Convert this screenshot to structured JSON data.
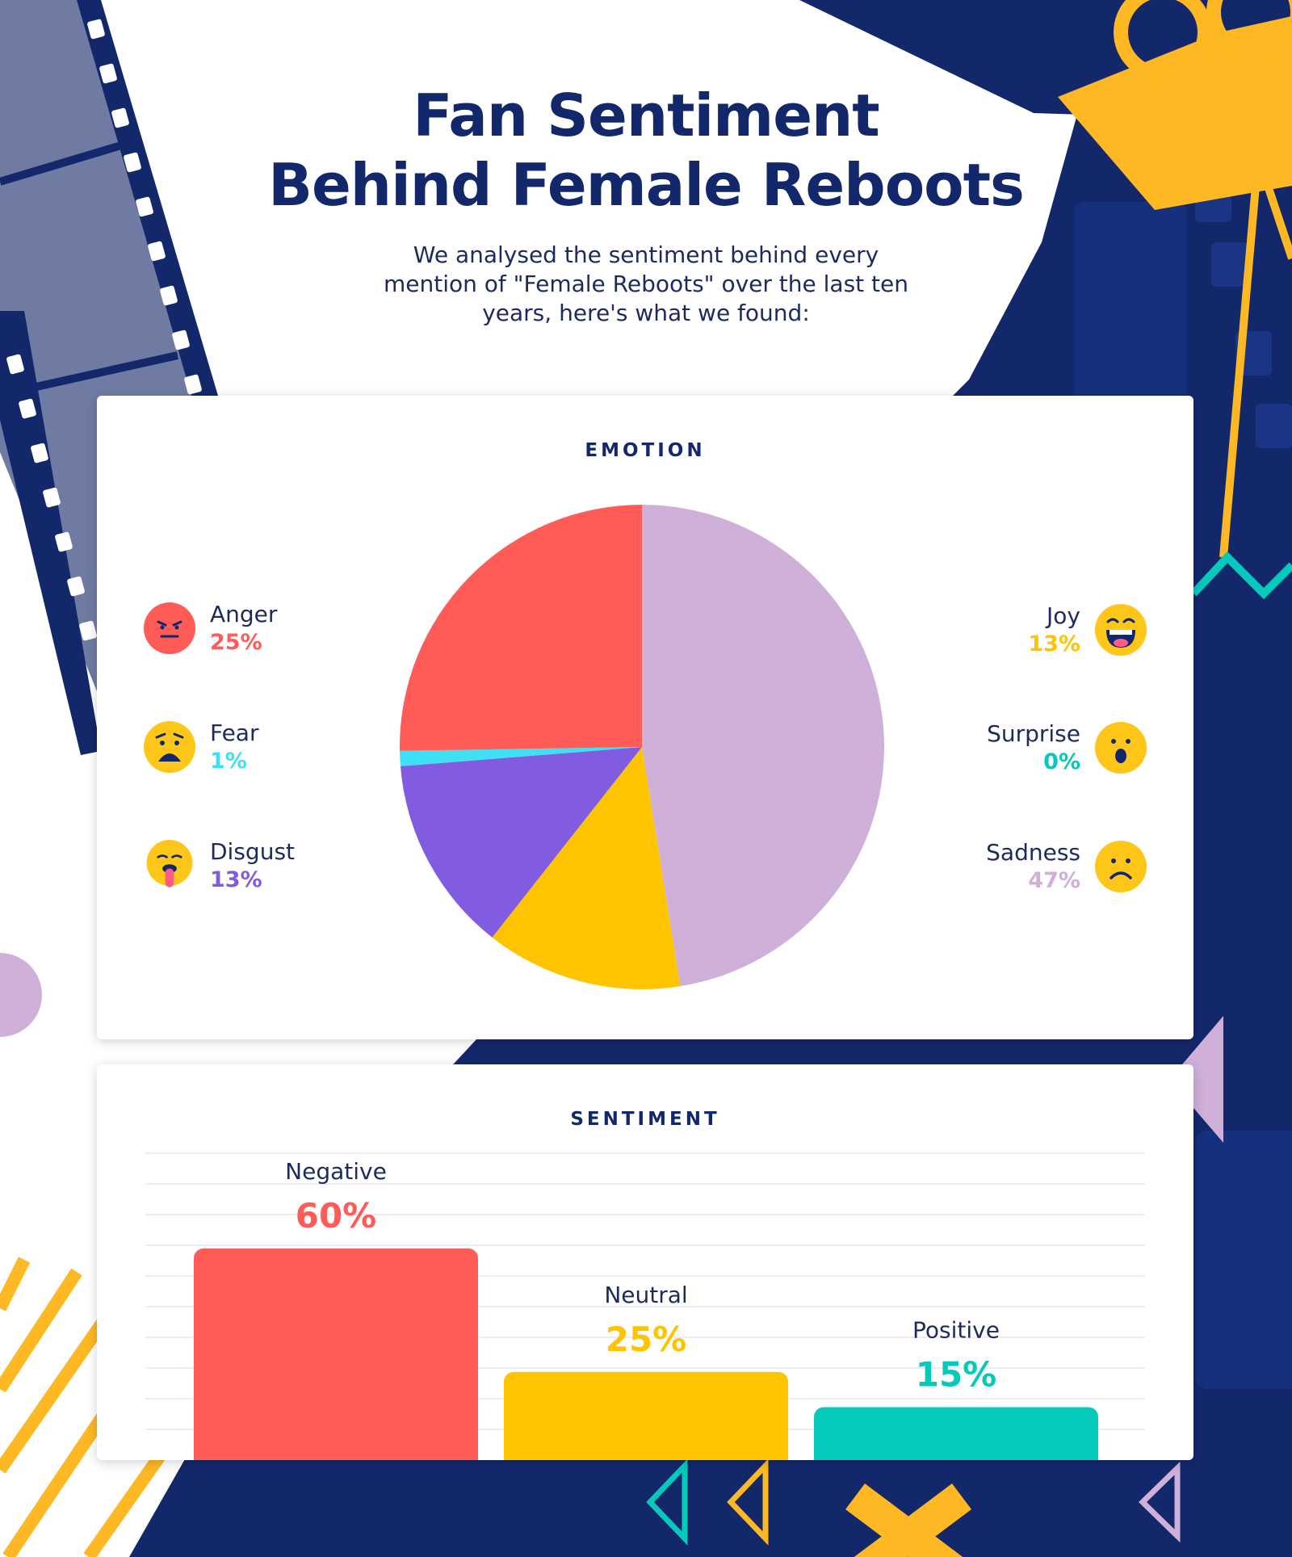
{
  "title_line1": "Fan Sentiment",
  "title_line2": "Behind Female Reboots",
  "subtitle": "We analysed the sentiment behind every mention of \"Female Reboots\" over the last ten years, here's what we found:",
  "colors": {
    "navy": "#13276b",
    "anger": "#ff5b57",
    "fear": "#3fe0f5",
    "disgust": "#815be0",
    "joy": "#ffc400",
    "surprise": "#05c9b9",
    "sadness": "#cfb0d9",
    "negative": "#ff5b57",
    "neutral": "#ffc400",
    "positive": "#05c9b9",
    "emoji_yellow": "#ffc61a",
    "emoji_red": "#ff5b57"
  },
  "emotion": {
    "title": "EMOTION",
    "legend_left": [
      {
        "name": "Anger",
        "pct": "25%",
        "icon": "angry-face-icon"
      },
      {
        "name": "Fear",
        "pct": "1%",
        "icon": "fearful-face-icon"
      },
      {
        "name": "Disgust",
        "pct": "13%",
        "icon": "tongue-out-face-icon"
      }
    ],
    "legend_right": [
      {
        "name": "Joy",
        "pct": "13%",
        "icon": "laughing-face-icon"
      },
      {
        "name": "Surprise",
        "pct": "0%",
        "icon": "surprised-face-icon"
      },
      {
        "name": "Sadness",
        "pct": "47%",
        "icon": "sad-face-icon"
      }
    ]
  },
  "sentiment": {
    "title": "SENTIMENT"
  },
  "chart_data": [
    {
      "type": "pie",
      "title": "EMOTION",
      "categories": [
        "Sadness",
        "Joy",
        "Disgust",
        "Fear",
        "Anger",
        "Surprise"
      ],
      "values": [
        47,
        13,
        13,
        1,
        25,
        0
      ],
      "colors": [
        "#cfb0d9",
        "#ffc400",
        "#815be0",
        "#3fe0f5",
        "#ff5b57",
        "#05c9b9"
      ]
    },
    {
      "type": "bar",
      "title": "SENTIMENT",
      "categories": [
        "Negative",
        "Neutral",
        "Positive"
      ],
      "values": [
        60,
        25,
        15
      ],
      "labels": [
        "60%",
        "25%",
        "15%"
      ],
      "colors": [
        "#ff5b57",
        "#ffc400",
        "#05c9b9"
      ],
      "ylim": [
        0,
        60
      ],
      "grid": true
    }
  ]
}
